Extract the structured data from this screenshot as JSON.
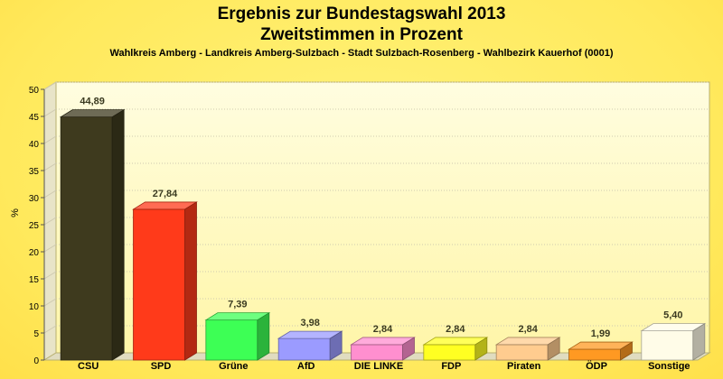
{
  "chart_data": {
    "type": "bar",
    "title_line1": "Ergebnis zur Bundestagswahl 2013",
    "title_line2": "Zweitstimmen in Prozent",
    "subtitle": "Wahlkreis Amberg - Landkreis Amberg-Sulzbach - Stadt Sulzbach-Rosenberg - Wahlbezirk Kauerhof (0001)",
    "ylabel": "%",
    "xlabel": "",
    "ylim": [
      0,
      50
    ],
    "yticks": [
      0,
      5,
      10,
      15,
      20,
      25,
      30,
      35,
      40,
      45,
      50
    ],
    "grid": true,
    "categories": [
      "CSU",
      "SPD",
      "Grüne",
      "AfD",
      "DIE LINKE",
      "FDP",
      "Piraten",
      "ÖDP",
      "Sonstige"
    ],
    "values": [
      44.89,
      27.84,
      7.39,
      3.98,
      2.84,
      2.84,
      2.84,
      1.99,
      5.4
    ],
    "value_labels": [
      "44,89",
      "27,84",
      "7,39",
      "3,98",
      "2,84",
      "2,84",
      "2,84",
      "1,99",
      "5,40"
    ],
    "colors": [
      "#3e3a1e",
      "#ff3a1a",
      "#3dff55",
      "#9b9bff",
      "#ff8fcf",
      "#ffff22",
      "#ffcc8f",
      "#ff9922",
      "#fffce8"
    ]
  }
}
